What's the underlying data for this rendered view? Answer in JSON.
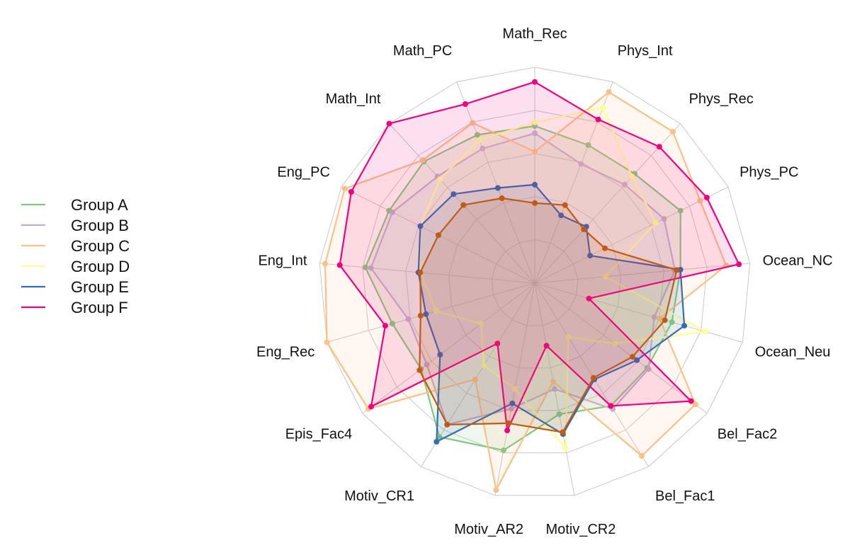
{
  "chart_data": {
    "type": "radar",
    "axes": [
      "Math_Rec",
      "Phys_Int",
      "Phys_Rec",
      "Phys_PC",
      "Ocean_NC",
      "Ocean_Neu",
      "Bel_Fac2",
      "Bel_Fac1",
      "Motiv_CR2",
      "Motiv_AR2",
      "Motiv_CR1",
      "Epis_Fac4",
      "Eng_Rec",
      "Eng_Int",
      "Eng_PC",
      "Math_Int",
      "Math_PC"
    ],
    "range": [
      0,
      1
    ],
    "grid": true,
    "grid_levels": 5,
    "legend_position": "left",
    "series": [
      {
        "name": "Group A",
        "color": "#7fc97f",
        "values": [
          0.68,
          0.63,
          0.63,
          0.71,
          0.62,
          0.6,
          0.59,
          0.61,
          0.55,
          0.75,
          0.81,
          0.6,
          0.63,
          0.75,
          0.71,
          0.72,
          0.69
        ]
      },
      {
        "name": "Group B",
        "color": "#beaed4",
        "values": [
          0.64,
          0.52,
          0.55,
          0.61,
          0.59,
          0.5,
          0.6,
          0.63,
          0.41,
          0.52,
          0.73,
          0.56,
          0.54,
          0.72,
          0.69,
          0.61,
          0.61
        ]
      },
      {
        "name": "Group C",
        "color": "#fdc086",
        "values": [
          0.54,
          0.94,
          0.94,
          0.83,
          0.87,
          0.53,
          0.92,
          0.93,
          0.37,
          0.97,
          0.44,
          0.96,
          1.0,
          0.97,
          0.98,
          0.73,
          0.76
        ]
      },
      {
        "name": "Group D",
        "color": "#ffff99",
        "values": [
          0.7,
          0.85,
          0.61,
          0.56,
          0.21,
          0.79,
          0.37,
          0.17,
          0.74,
          0.41,
          0.35,
          0.19,
          0.38,
          0.45,
          0.52,
          0.59,
          0.66
        ]
      },
      {
        "name": "Group E",
        "color": "#386cb0",
        "values": [
          0.36,
          0.22,
          0.24,
          0.16,
          0.62,
          0.67,
          0.52,
          0.44,
          0.66,
          0.49,
          0.84,
          0.47,
          0.44,
          0.46,
          0.52,
          0.48,
          0.38
        ]
      },
      {
        "name": "Group F",
        "color": "#f0027f",
        "values": [
          0.92,
          0.78,
          0.83,
          0.87,
          0.94,
          0.13,
          0.89,
          0.61,
          0.17,
          0.64,
          0.21,
          0.94,
          0.67,
          0.89,
          0.94,
          1.0,
          0.87
        ]
      },
      {
        "name": "",
        "color": "#bf5b17",
        "values": [
          0.26,
          0.28,
          0.22,
          0.25,
          0.6,
          0.56,
          0.49,
          0.43,
          0.65,
          0.6,
          0.73,
          0.61,
          0.47,
          0.45,
          0.41,
          0.4,
          0.32
        ]
      }
    ]
  }
}
